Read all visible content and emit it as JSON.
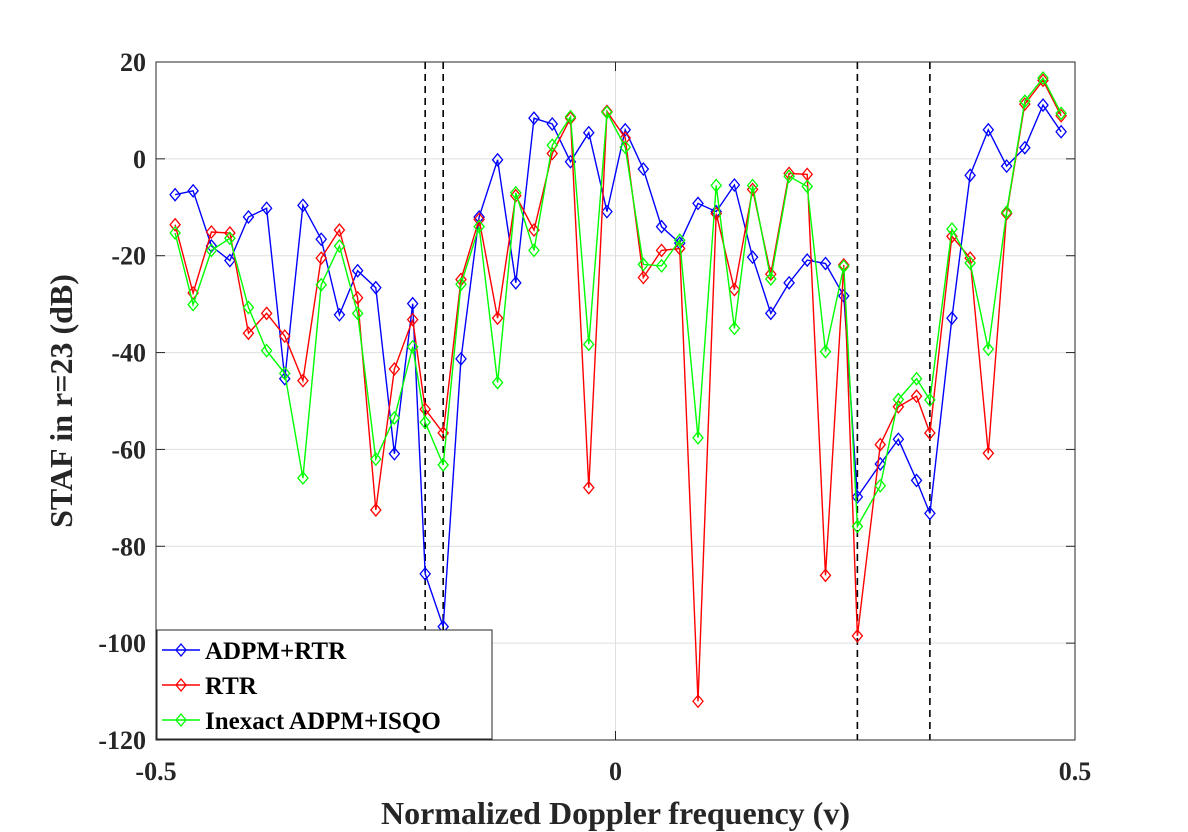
{
  "chart_data": {
    "type": "line",
    "title": "",
    "xlabel": "Normalized Doppler frequency (v)",
    "ylabel": "STAF in r=23 (dB)",
    "xlim": [
      -0.5,
      0.5
    ],
    "ylim": [
      -120,
      20
    ],
    "xticks": [
      -0.5,
      0,
      0.5
    ],
    "xtick_labels": [
      "-0.5",
      "0",
      "0.5"
    ],
    "yticks": [
      20,
      0,
      -20,
      -40,
      -60,
      -80,
      -100,
      -120
    ],
    "ytick_labels": [
      "20",
      "0",
      "-20",
      "-40",
      "-60",
      "-80",
      "-100",
      "-120"
    ],
    "grid": true,
    "legend_position": "bottom-left",
    "marker": "diamond",
    "reference_lines_x": [
      -0.2071,
      -0.1875,
      0.2632,
      0.3421
    ],
    "x": [
      -0.4792,
      -0.4596,
      -0.4397,
      -0.4196,
      -0.3994,
      -0.3796,
      -0.3599,
      -0.3401,
      -0.3202,
      -0.3004,
      -0.2806,
      -0.2608,
      -0.2406,
      -0.2207,
      -0.2071,
      -0.1875,
      -0.1681,
      -0.1484,
      -0.1283,
      -0.1085,
      -0.0887,
      -0.0688,
      -0.049,
      -0.0291,
      -0.0093,
      0.0106,
      0.0303,
      0.0501,
      0.0699,
      0.0898,
      0.1096,
      0.1294,
      0.1492,
      0.169,
      0.1889,
      0.2086,
      0.2285,
      0.2484,
      0.2632,
      0.2881,
      0.3078,
      0.3276,
      0.3421,
      0.3661,
      0.3859,
      0.4057,
      0.4256,
      0.4454,
      0.4652,
      0.4849
    ],
    "series": [
      {
        "name": "ADPM+RTR",
        "color": "#0000ff",
        "values": [
          -7.4,
          -6.6,
          -18,
          -21,
          -12,
          -10.2,
          -45.4,
          -9.6,
          -16.6,
          -32.2,
          -23.1,
          -26.6,
          -60.9,
          -29.9,
          -85.7,
          -96.6,
          -41.3,
          -12,
          -0.2,
          -25.6,
          8.4,
          7.2,
          -0.6,
          5.4,
          -10.9,
          6,
          -2.1,
          -14,
          -17.4,
          -9.2,
          -10.9,
          -5.4,
          -20.3,
          -31.9,
          -25.6,
          -20.9,
          -21.6,
          -28.3,
          -69.8,
          -63,
          -57.9,
          -66.4,
          -73.2,
          -32.9,
          -3.4,
          6,
          -1.5,
          2.3,
          11.1,
          5.6
        ]
      },
      {
        "name": "RTR",
        "color": "#ff0000",
        "values": [
          -13.6,
          -27.7,
          -15.1,
          -15.3,
          -36,
          -31.9,
          -36.6,
          -45.8,
          -20.5,
          -14.7,
          -28.7,
          -72.5,
          -43.4,
          -33.2,
          -51.7,
          -56.6,
          -24.9,
          -12.5,
          -32.9,
          -7.6,
          -14.7,
          1.1,
          8.4,
          -67.9,
          9.8,
          4.3,
          -24.5,
          -18.9,
          -18.5,
          -112,
          -11.3,
          -27,
          -6.3,
          -23.8,
          -3,
          -3.2,
          -86,
          -21.9,
          -98.5,
          -59,
          -51.2,
          -49,
          -56.6,
          -16,
          -20.5,
          -60.8,
          -11.3,
          11.3,
          16.2,
          8.9
        ]
      },
      {
        "name": "Inexact ADPM+ISQO",
        "color": "#00ff00",
        "values": [
          -15.3,
          -30.1,
          -18.9,
          -16.4,
          -30.7,
          -39.6,
          -44.3,
          -65.9,
          -26,
          -18,
          -31.9,
          -62,
          -53.5,
          -38.8,
          -54.4,
          -63.2,
          -25.9,
          -14,
          -46.2,
          -7,
          -18.9,
          2.8,
          8.7,
          -38.3,
          9.6,
          2.4,
          -21.8,
          -22.1,
          -16.8,
          -57.6,
          -5.5,
          -35,
          -5.5,
          -24.8,
          -3.6,
          -5.7,
          -39.8,
          -22.2,
          -75.9,
          -67.5,
          -49.7,
          -45.4,
          -49.8,
          -14.5,
          -21.5,
          -39.3,
          -11,
          11.9,
          16.7,
          9.4
        ]
      }
    ]
  }
}
